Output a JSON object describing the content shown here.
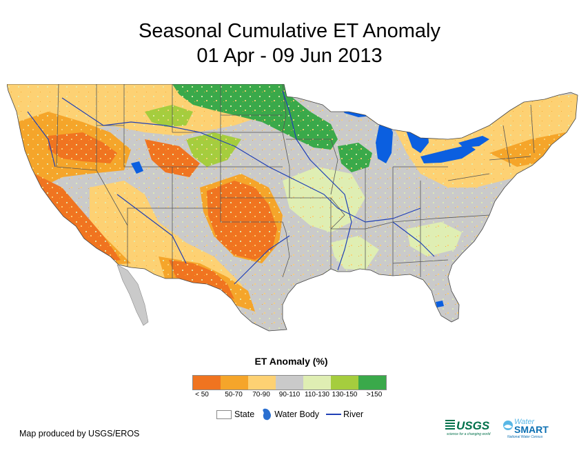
{
  "title": {
    "line1": "Seasonal Cumulative ET Anomaly",
    "line2": "01 Apr - 09 Jun 2013"
  },
  "legend": {
    "title": "ET Anomaly (%)",
    "classes": [
      {
        "label": "< 50",
        "color": "#f07420"
      },
      {
        "label": "50-70",
        "color": "#f5a52a"
      },
      {
        "label": "70-90",
        "color": "#fdd173"
      },
      {
        "label": "90-110",
        "color": "#cacaca"
      },
      {
        "label": "110-130",
        "color": "#dfeeb3"
      },
      {
        "label": "130-150",
        "color": "#a5cd3e"
      },
      {
        "label": ">150",
        "color": "#3aa94a"
      }
    ]
  },
  "reference": {
    "state_label": "State",
    "water_body_label": "Water Body",
    "river_label": "River"
  },
  "colors": {
    "water": "#0b5fe0",
    "river": "#1f3fb5",
    "state_border": "#555555"
  },
  "credit": "Map produced by USGS/EROS",
  "logos": {
    "usgs": "USGS",
    "usgs_tagline": "science for a changing world",
    "watersmart": "WaterSMART",
    "watersmart_tagline": "National Water Census"
  }
}
